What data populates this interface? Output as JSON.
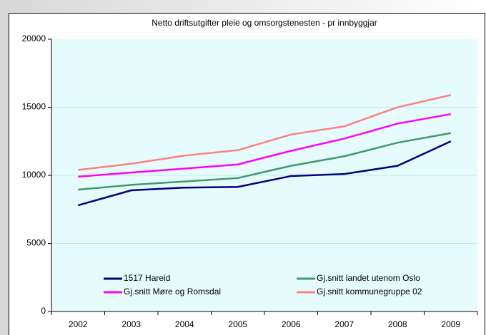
{
  "chart_data": {
    "type": "line",
    "title": "Netto driftsutgifter pleie og omsorgstenesten - pr innbyggjar",
    "categories": [
      "2002",
      "2003",
      "2004",
      "2005",
      "2006",
      "2007",
      "2008",
      "2009"
    ],
    "series": [
      {
        "name": "1517 Hareid",
        "color": "#000080",
        "values": [
          7800,
          8900,
          9100,
          9150,
          9950,
          10100,
          10700,
          12500
        ]
      },
      {
        "name": "Gj.snitt landet utenom Oslo",
        "color": "#3d9a6c",
        "values": [
          8950,
          9300,
          9550,
          9800,
          10700,
          11400,
          12400,
          13100
        ]
      },
      {
        "name": "Gj.snitt Møre og Romsdal",
        "color": "#ff00ff",
        "values": [
          9900,
          10200,
          10500,
          10800,
          11800,
          12700,
          13800,
          14500
        ]
      },
      {
        "name": "Gj.snitt kommunegruppe 02",
        "color": "#ff8080",
        "values": [
          10400,
          10850,
          11450,
          11850,
          13000,
          13600,
          15000,
          15900
        ]
      }
    ],
    "ylim": [
      0,
      20000
    ],
    "yticks": [
      0,
      5000,
      10000,
      15000,
      20000
    ],
    "grid": true,
    "legend": "bottom"
  }
}
